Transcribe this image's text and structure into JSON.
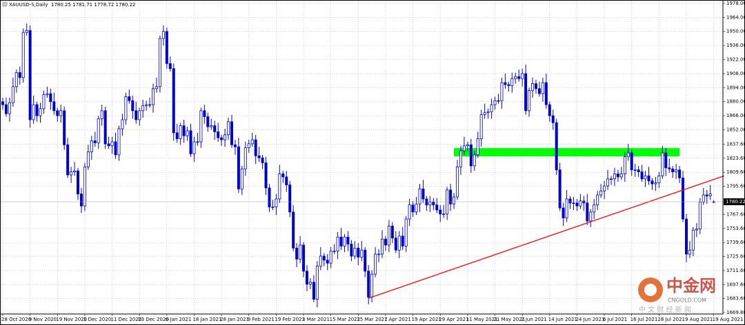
{
  "chart_data": {
    "type": "candlestick",
    "title": "XAUUSD-S,Daily  1780.25 1781.71 1778.72 1780.22",
    "color": "#0000cd",
    "ylim": [
      1668.3,
      1981.4
    ],
    "yticks": [
      {
        "value": 1978,
        "label": "1978.00"
      },
      {
        "value": 1964,
        "label": "1964.00"
      },
      {
        "value": 1950,
        "label": "1950.00"
      },
      {
        "value": 1936,
        "label": "1936.00"
      },
      {
        "value": 1922,
        "label": "1922.00"
      },
      {
        "value": 1908,
        "label": "1908.00"
      },
      {
        "value": 1894,
        "label": "1894.00"
      },
      {
        "value": 1880,
        "label": "1880.00"
      },
      {
        "value": 1866,
        "label": "1866.00"
      },
      {
        "value": 1852,
        "label": "1852.00"
      },
      {
        "value": 1837.6,
        "label": "1837.60"
      },
      {
        "value": 1823.6,
        "label": "1823.60"
      },
      {
        "value": 1809.6,
        "label": "1809.60"
      },
      {
        "value": 1795.6,
        "label": "1795.60"
      },
      {
        "value": 1767.6,
        "label": "1767.60"
      },
      {
        "value": 1753.6,
        "label": "1753.60"
      },
      {
        "value": 1739.6,
        "label": "1739.60"
      },
      {
        "value": 1725.6,
        "label": "1725.60"
      },
      {
        "value": 1711.6,
        "label": "1711.60"
      },
      {
        "value": 1697.6,
        "label": "1697.60"
      },
      {
        "value": 1683.6,
        "label": "1683.60"
      },
      {
        "value": 1669.8,
        "label": "1669.80"
      }
    ],
    "grid": true,
    "last_price": {
      "value": 1780.22,
      "label": "1780.22"
    },
    "categories": [
      "28 Oct 2020",
      null,
      null,
      null,
      null,
      null,
      null,
      null,
      "9 Nov 2020",
      null,
      null,
      null,
      null,
      null,
      null,
      null,
      "19 Nov 2020",
      null,
      null,
      null,
      null,
      null,
      null,
      null,
      "1 Dec 2020",
      null,
      null,
      null,
      null,
      null,
      null,
      null,
      "11 Dec 2020",
      null,
      null,
      null,
      null,
      null,
      null,
      null,
      "23 Dec 2020",
      null,
      null,
      null,
      null,
      null,
      null,
      null,
      "6 Jan 2021",
      null,
      null,
      null,
      null,
      null,
      null,
      null,
      "18 Jan 2021",
      null,
      null,
      null,
      null,
      null,
      null,
      null,
      "28 Jan 2021",
      null,
      null,
      null,
      null,
      null,
      null,
      null,
      "9 Feb 2021",
      null,
      null,
      null,
      null,
      null,
      null,
      null,
      "19 Feb 2021",
      null,
      null,
      null,
      null,
      null,
      null,
      null,
      "3 Mar 2021",
      null,
      null,
      null,
      null,
      null,
      null,
      null,
      "15 Mar 2021",
      null,
      null,
      null,
      null,
      null,
      null,
      null,
      "25 Mar 2021",
      null,
      null,
      null,
      null,
      null,
      null,
      null,
      "7 Apr 2021",
      null,
      null,
      null,
      null,
      null,
      null,
      null,
      "19 Apr 2021",
      null,
      null,
      null,
      null,
      null,
      null,
      null,
      "29 Apr 2021",
      null,
      null,
      null,
      null,
      null,
      null,
      null,
      "11 May 2021",
      null,
      null,
      null,
      null,
      null,
      null,
      null,
      "21 May 2021",
      null,
      null,
      null,
      null,
      null,
      null,
      null,
      "2 Jun 2021",
      null,
      null,
      null,
      null,
      null,
      null,
      null,
      "14 Jun 2021",
      null,
      null,
      null,
      null,
      null,
      null,
      null,
      "24 Jun 2021",
      null,
      null,
      null,
      null,
      null,
      null,
      null,
      "6 Jul 2021",
      null,
      null,
      null,
      null,
      null,
      null,
      null,
      "16 Jul 2021",
      null,
      null,
      null,
      null,
      null,
      null,
      null,
      "28 Jul 2021",
      null,
      null,
      null,
      null,
      null,
      null,
      null,
      "9 Aug 2021",
      null,
      null,
      null,
      null,
      null,
      null,
      null,
      "19 Aug 2021"
    ],
    "open": [
      1880,
      1877,
      1868,
      1879,
      1895,
      1909,
      1904,
      1949,
      1951,
      1862,
      1877,
      1866,
      1873,
      1887,
      1888,
      1880,
      1871,
      1866,
      1871,
      1837,
      1807,
      1810,
      1811,
      1788,
      1776,
      1815,
      1830,
      1841,
      1839,
      1863,
      1871,
      1838,
      1836,
      1840,
      1827,
      1853,
      1862,
      1885,
      1881,
      1871,
      1862,
      1871,
      1876,
      1877,
      1877,
      1893,
      1895,
      1943,
      1950,
      1918,
      1913,
      1849,
      1843,
      1856,
      1846,
      1851,
      1828,
      1840,
      1840,
      1871,
      1865,
      1855,
      1856,
      1850,
      1844,
      1842,
      1847,
      1860,
      1837,
      1835,
      1793,
      1813,
      1834,
      1838,
      1842,
      1826,
      1824,
      1819,
      1794,
      1775,
      1775,
      1783,
      1808,
      1805,
      1797,
      1770,
      1734,
      1723,
      1737,
      1711,
      1698,
      1700,
      1683,
      1716,
      1726,
      1722,
      1719,
      1731,
      1731,
      1745,
      1736,
      1745,
      1738,
      1726,
      1734,
      1725,
      1732,
      1711,
      1685,
      1708,
      1728,
      1728,
      1743,
      1737,
      1756,
      1744,
      1732,
      1746,
      1736,
      1763,
      1777,
      1770,
      1778,
      1793,
      1783,
      1777,
      1780,
      1777,
      1772,
      1768,
      1768,
      1792,
      1778,
      1785,
      1815,
      1831,
      1836,
      1837,
      1816,
      1827,
      1843,
      1867,
      1869,
      1870,
      1877,
      1881,
      1881,
      1899,
      1897,
      1896,
      1903,
      1905,
      1903,
      1908,
      1871,
      1891,
      1898,
      1893,
      1888,
      1899,
      1877,
      1866,
      1859,
      1812,
      1774,
      1764,
      1783,
      1779,
      1779,
      1776,
      1781,
      1779,
      1761,
      1770,
      1777,
      1787,
      1791,
      1796,
      1803,
      1803,
      1808,
      1805,
      1808,
      1825,
      1829,
      1812,
      1812,
      1810,
      1803,
      1806,
      1801,
      1798,
      1799,
      1806,
      1829,
      1814,
      1813,
      1810,
      1812,
      1804,
      1763,
      1728,
      1732,
      1752,
      1753,
      1780,
      1787,
      1786,
      1780.25
    ],
    "high": [
      1884,
      1884,
      1884,
      1904,
      1912,
      1915,
      1953,
      1958,
      1956,
      1886,
      1880,
      1879,
      1891,
      1895,
      1893,
      1889,
      1874,
      1877,
      1875,
      1844,
      1815,
      1820,
      1814,
      1794,
      1819,
      1837,
      1846,
      1850,
      1866,
      1877,
      1875,
      1845,
      1845,
      1849,
      1856,
      1868,
      1889,
      1892,
      1886,
      1880,
      1874,
      1882,
      1881,
      1884,
      1898,
      1904,
      1946,
      1956,
      1954,
      1925,
      1918,
      1858,
      1859,
      1862,
      1855,
      1858,
      1845,
      1849,
      1874,
      1877,
      1869,
      1863,
      1861,
      1859,
      1847,
      1853,
      1864,
      1867,
      1842,
      1844,
      1816,
      1840,
      1842,
      1849,
      1847,
      1835,
      1827,
      1825,
      1798,
      1782,
      1788,
      1817,
      1811,
      1811,
      1801,
      1777,
      1739,
      1746,
      1740,
      1717,
      1704,
      1707,
      1721,
      1735,
      1729,
      1728,
      1735,
      1738,
      1750,
      1754,
      1748,
      1751,
      1742,
      1741,
      1739,
      1741,
      1735,
      1717,
      1712,
      1735,
      1733,
      1752,
      1746,
      1762,
      1760,
      1751,
      1751,
      1755,
      1766,
      1783,
      1781,
      1785,
      1798,
      1802,
      1786,
      1786,
      1784,
      1784,
      1777,
      1777,
      1795,
      1798,
      1789,
      1822,
      1836,
      1845,
      1840,
      1843,
      1831,
      1850,
      1872,
      1878,
      1873,
      1883,
      1885,
      1888,
      1904,
      1908,
      1900,
      1909,
      1909,
      1912,
      1913,
      1917,
      1894,
      1904,
      1902,
      1900,
      1904,
      1908,
      1880,
      1872,
      1863,
      1819,
      1779,
      1792,
      1786,
      1785,
      1783,
      1788,
      1786,
      1788,
      1773,
      1783,
      1791,
      1798,
      1801,
      1812,
      1806,
      1814,
      1812,
      1815,
      1830,
      1838,
      1832,
      1818,
      1816,
      1817,
      1811,
      1815,
      1804,
      1805,
      1810,
      1836,
      1834,
      1823,
      1816,
      1818,
      1816,
      1811,
      1768,
      1741,
      1755,
      1759,
      1784,
      1794,
      1792,
      1797,
      1781.71
    ],
    "low": [
      1872,
      1865,
      1860,
      1875,
      1889,
      1897,
      1899,
      1946,
      1854,
      1858,
      1860,
      1859,
      1868,
      1884,
      1872,
      1867,
      1860,
      1859,
      1832,
      1804,
      1799,
      1806,
      1782,
      1769,
      1771,
      1812,
      1822,
      1835,
      1833,
      1856,
      1833,
      1833,
      1828,
      1823,
      1821,
      1846,
      1857,
      1878,
      1863,
      1858,
      1856,
      1864,
      1871,
      1874,
      1869,
      1889,
      1889,
      1936,
      1913,
      1910,
      1841,
      1839,
      1837,
      1839,
      1841,
      1825,
      1820,
      1836,
      1834,
      1858,
      1850,
      1852,
      1842,
      1840,
      1836,
      1835,
      1842,
      1834,
      1827,
      1789,
      1787,
      1806,
      1829,
      1835,
      1818,
      1820,
      1813,
      1787,
      1770,
      1772,
      1767,
      1779,
      1799,
      1790,
      1765,
      1731,
      1715,
      1719,
      1705,
      1691,
      1693,
      1680,
      1675,
      1712,
      1716,
      1712,
      1714,
      1728,
      1723,
      1732,
      1730,
      1731,
      1721,
      1723,
      1717,
      1721,
      1705,
      1678,
      1680,
      1705,
      1720,
      1724,
      1731,
      1730,
      1739,
      1729,
      1724,
      1732,
      1730,
      1756,
      1765,
      1767,
      1770,
      1779,
      1771,
      1770,
      1772,
      1769,
      1760,
      1764,
      1762,
      1771,
      1773,
      1782,
      1807,
      1827,
      1830,
      1809,
      1811,
      1824,
      1835,
      1863,
      1863,
      1863,
      1872,
      1878,
      1873,
      1893,
      1890,
      1889,
      1898,
      1900,
      1895,
      1867,
      1865,
      1884,
      1888,
      1885,
      1880,
      1873,
      1860,
      1852,
      1807,
      1771,
      1756,
      1760,
      1773,
      1772,
      1771,
      1773,
      1771,
      1757,
      1755,
      1763,
      1772,
      1784,
      1783,
      1792,
      1797,
      1796,
      1800,
      1802,
      1800,
      1821,
      1806,
      1805,
      1805,
      1800,
      1795,
      1797,
      1792,
      1791,
      1794,
      1803,
      1806,
      1809,
      1804,
      1803,
      1799,
      1760,
      1720,
      1724,
      1726,
      1745,
      1748,
      1777,
      1778,
      1782,
      1778.72
    ],
    "close": [
      1877,
      1868,
      1879,
      1895,
      1909,
      1904,
      1949,
      1951,
      1862,
      1877,
      1866,
      1873,
      1887,
      1888,
      1880,
      1871,
      1866,
      1871,
      1837,
      1807,
      1810,
      1811,
      1788,
      1776,
      1815,
      1830,
      1841,
      1839,
      1863,
      1871,
      1838,
      1836,
      1840,
      1827,
      1853,
      1862,
      1885,
      1881,
      1871,
      1862,
      1871,
      1876,
      1877,
      1877,
      1893,
      1895,
      1943,
      1950,
      1918,
      1913,
      1849,
      1843,
      1856,
      1846,
      1851,
      1828,
      1840,
      1840,
      1871,
      1865,
      1855,
      1856,
      1850,
      1844,
      1842,
      1847,
      1860,
      1837,
      1835,
      1793,
      1813,
      1834,
      1838,
      1842,
      1826,
      1824,
      1819,
      1794,
      1775,
      1775,
      1783,
      1808,
      1805,
      1797,
      1770,
      1734,
      1723,
      1737,
      1711,
      1698,
      1700,
      1683,
      1716,
      1726,
      1722,
      1719,
      1731,
      1731,
      1745,
      1736,
      1745,
      1738,
      1726,
      1734,
      1725,
      1732,
      1711,
      1685,
      1708,
      1728,
      1728,
      1743,
      1737,
      1756,
      1744,
      1732,
      1746,
      1736,
      1763,
      1777,
      1770,
      1778,
      1793,
      1783,
      1777,
      1780,
      1777,
      1772,
      1768,
      1768,
      1792,
      1778,
      1785,
      1815,
      1831,
      1836,
      1837,
      1816,
      1827,
      1843,
      1867,
      1869,
      1870,
      1877,
      1881,
      1881,
      1899,
      1897,
      1896,
      1903,
      1905,
      1903,
      1908,
      1871,
      1891,
      1898,
      1893,
      1888,
      1899,
      1877,
      1866,
      1859,
      1812,
      1774,
      1764,
      1783,
      1779,
      1779,
      1776,
      1781,
      1779,
      1761,
      1770,
      1777,
      1787,
      1791,
      1796,
      1803,
      1803,
      1808,
      1805,
      1808,
      1825,
      1829,
      1812,
      1812,
      1810,
      1803,
      1806,
      1801,
      1798,
      1799,
      1806,
      1829,
      1814,
      1813,
      1810,
      1812,
      1804,
      1763,
      1728,
      1732,
      1752,
      1753,
      1780,
      1787,
      1786,
      1788,
      1780.22
    ],
    "zone": {
      "x": [
        132,
        198
      ],
      "y": [
        1825.5,
        1833.7
      ],
      "color": "#00ff00"
    },
    "trendline": {
      "x": [
        107,
        211
      ],
      "y": [
        1684,
        1806
      ],
      "color": "#ff0000"
    },
    "watermark": {
      "logo": "中金网",
      "site": "CNGOLD.COM",
      "slogan": "中 文 财 经 新 闻"
    }
  }
}
